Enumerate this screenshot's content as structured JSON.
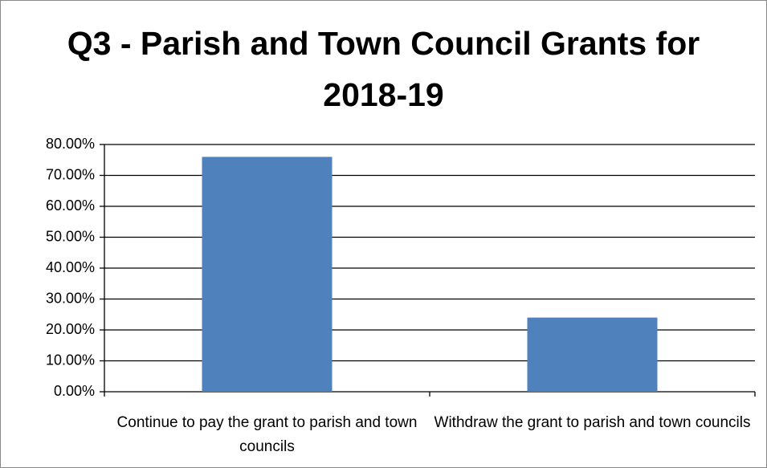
{
  "chart_data": {
    "type": "bar",
    "title": "Q3 - Parish and Town Council Grants for 2018-19",
    "categories": [
      "Continue to pay the grant to parish and town councils",
      "Withdraw the grant to parish and town councils"
    ],
    "values": [
      76,
      24
    ],
    "color": "#4f81bd",
    "ylim": [
      0,
      80
    ],
    "yticks": [
      {
        "value": 0,
        "label": "0.00%"
      },
      {
        "value": 10,
        "label": "10.00%"
      },
      {
        "value": 20,
        "label": "20.00%"
      },
      {
        "value": 30,
        "label": "30.00%"
      },
      {
        "value": 40,
        "label": "40.00%"
      },
      {
        "value": 50,
        "label": "50.00%"
      },
      {
        "value": 60,
        "label": "60.00%"
      },
      {
        "value": 70,
        "label": "70.00%"
      },
      {
        "value": 80,
        "label": "80.00%"
      }
    ],
    "grid": true
  }
}
